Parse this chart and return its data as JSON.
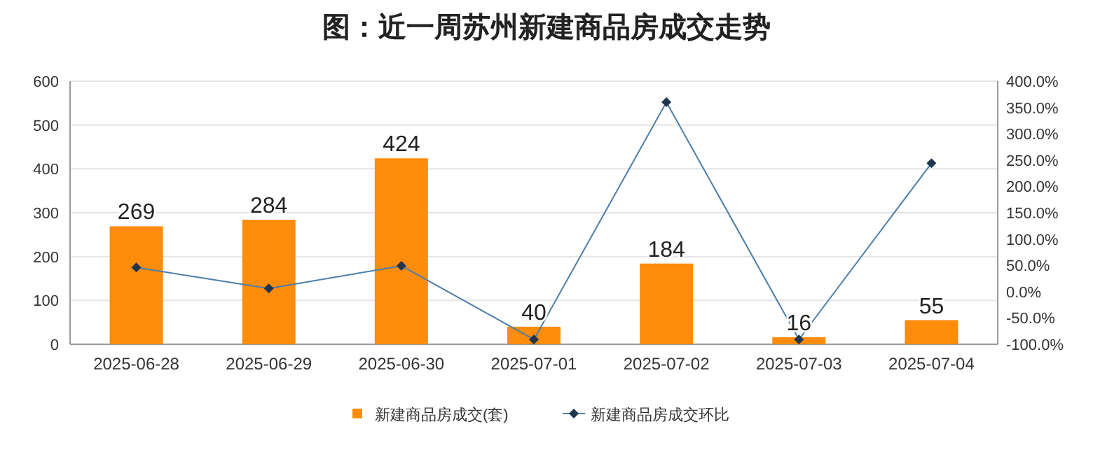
{
  "chart_data": {
    "type": "bar",
    "title": "图：近一周苏州新建商品房成交走势",
    "categories": [
      "2025-06-28",
      "2025-06-29",
      "2025-06-30",
      "2025-07-01",
      "2025-07-02",
      "2025-07-03",
      "2025-07-04"
    ],
    "series": [
      {
        "name": "新建商品房成交(套)",
        "color": "#ff8c0a",
        "values": [
          269,
          284,
          424,
          40,
          184,
          16,
          55
        ],
        "value_labels": [
          "269",
          "284",
          "424",
          "40",
          "184",
          "16",
          "55"
        ]
      },
      {
        "name": "新建商品房成交环比",
        "type": "line",
        "axis": "y2",
        "color": "#4a7eaa",
        "marker": "diamond",
        "values": [
          46,
          6,
          49,
          -91,
          360,
          -91,
          244
        ]
      }
    ],
    "ylim": [
      0,
      600
    ],
    "yticks": [
      0,
      100,
      200,
      300,
      400,
      500,
      600
    ],
    "y2lim": [
      -100,
      400
    ],
    "y2ticks": [
      {
        "value": -100,
        "label": "-100.0%"
      },
      {
        "value": -50,
        "label": "-50.0%"
      },
      {
        "value": 0,
        "label": "0.0%"
      },
      {
        "value": 50,
        "label": "50.0%"
      },
      {
        "value": 100,
        "label": "100.0%"
      },
      {
        "value": 150,
        "label": "150.0%"
      },
      {
        "value": 200,
        "label": "200.0%"
      },
      {
        "value": 250,
        "label": "250.0%"
      },
      {
        "value": 300,
        "label": "300.0%"
      },
      {
        "value": 350,
        "label": "350.0%"
      },
      {
        "value": 400,
        "label": "400.0%"
      }
    ],
    "grid": "y",
    "legend": "bottom"
  }
}
